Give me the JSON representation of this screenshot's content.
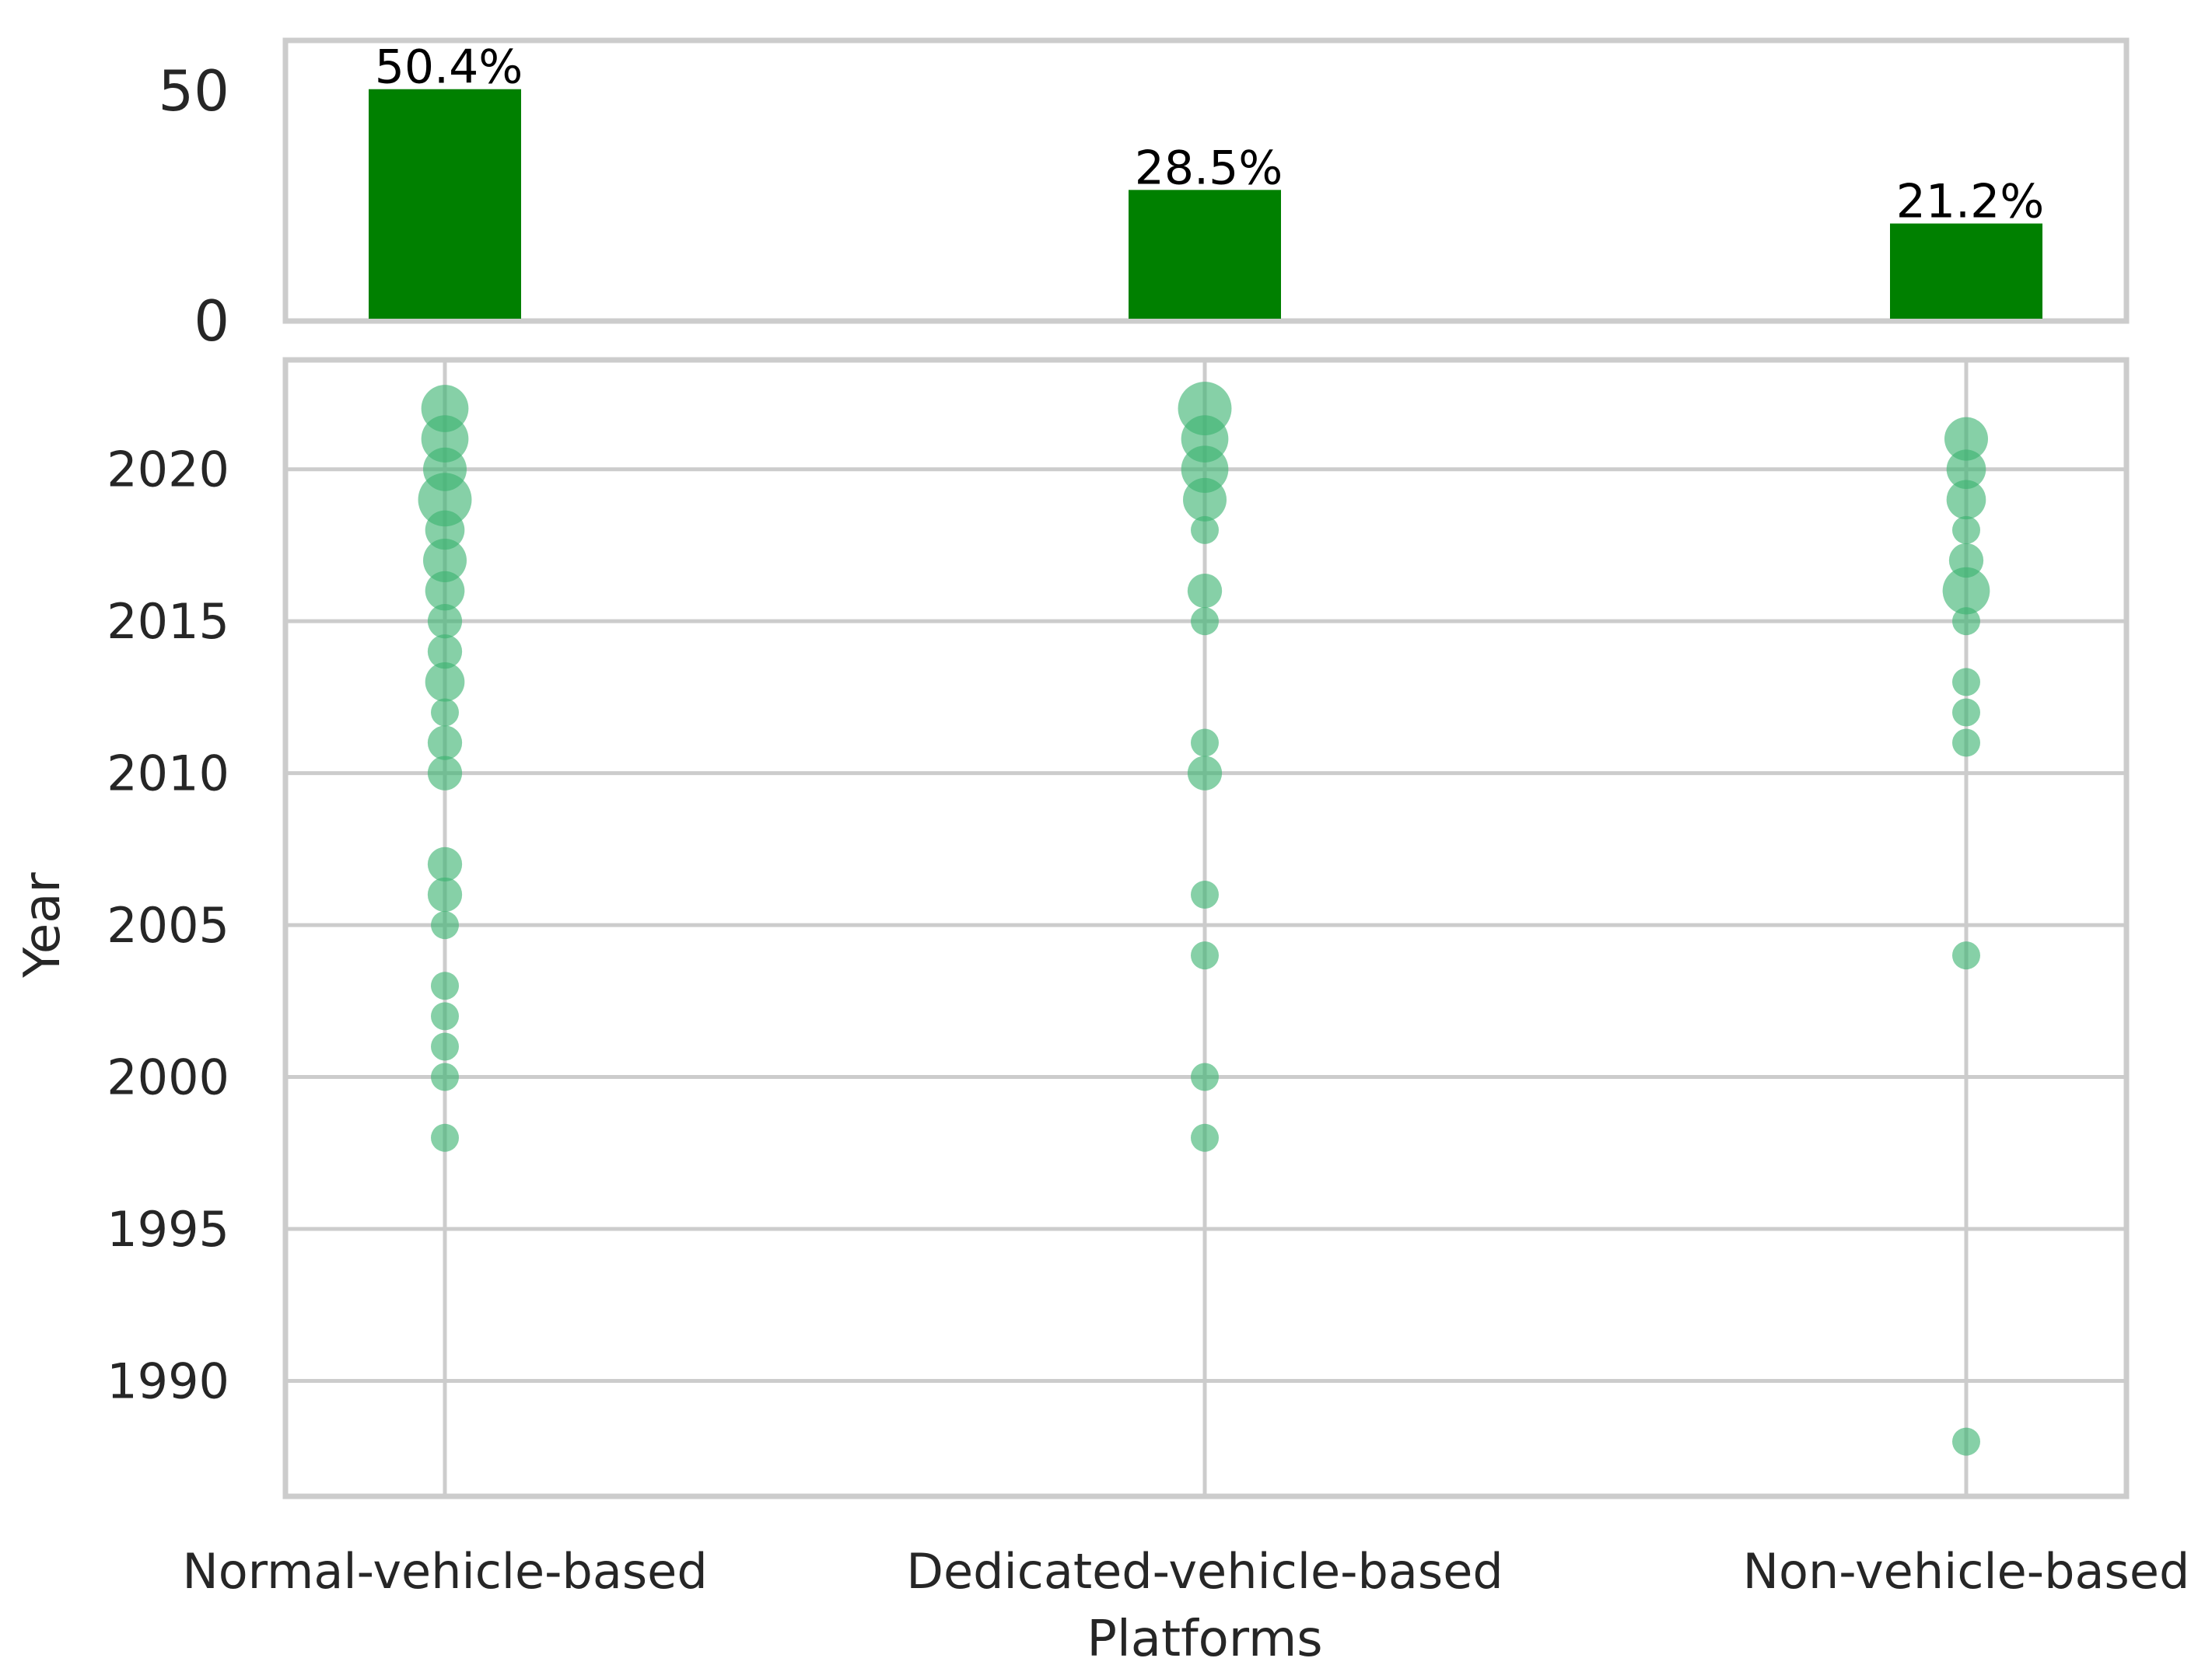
{
  "colors": {
    "bar": "#008000",
    "bubble": "#3cb371",
    "frame": "#cccccc",
    "grid": "#cccccc",
    "text": "#262626"
  },
  "chart_data": [
    {
      "type": "bar",
      "title": "",
      "categories": [
        "Normal-vehicle-based",
        "Dedicated-vehicle-based",
        "Non-vehicle-based"
      ],
      "values": [
        50.4,
        28.5,
        21.2
      ],
      "data_labels": [
        "50.4%",
        "28.5%",
        "21.2%"
      ],
      "ylim": [
        0,
        61
      ],
      "yticks": [
        0,
        50
      ],
      "ytick_labels": [
        "0",
        "50"
      ],
      "grid": false
    },
    {
      "type": "scatter",
      "title": "",
      "xlabel": "Platforms",
      "ylabel": "Year",
      "categories": [
        "Normal-vehicle-based",
        "Dedicated-vehicle-based",
        "Non-vehicle-based"
      ],
      "ylim": [
        1986.2,
        2023.6
      ],
      "yticks": [
        1990,
        1995,
        2000,
        2005,
        2010,
        2015,
        2020
      ],
      "ytick_labels": [
        "1990",
        "1995",
        "2000",
        "2005",
        "2010",
        "2015",
        "2020"
      ],
      "grid": true,
      "size_encoding": "number of studies per year (relative)",
      "series": [
        {
          "name": "Normal-vehicle-based",
          "points": [
            {
              "year": 2022,
              "size": 5
            },
            {
              "year": 2021,
              "size": 5
            },
            {
              "year": 2020,
              "size": 4
            },
            {
              "year": 2019,
              "size": 7
            },
            {
              "year": 2018,
              "size": 3
            },
            {
              "year": 2017,
              "size": 4
            },
            {
              "year": 2016,
              "size": 3
            },
            {
              "year": 2015,
              "size": 2
            },
            {
              "year": 2014,
              "size": 2
            },
            {
              "year": 2013,
              "size": 3
            },
            {
              "year": 2012,
              "size": 1
            },
            {
              "year": 2011,
              "size": 2
            },
            {
              "year": 2010,
              "size": 2
            },
            {
              "year": 2007,
              "size": 2
            },
            {
              "year": 2006,
              "size": 2
            },
            {
              "year": 2005,
              "size": 1
            },
            {
              "year": 2003,
              "size": 1
            },
            {
              "year": 2002,
              "size": 1
            },
            {
              "year": 2001,
              "size": 1
            },
            {
              "year": 2000,
              "size": 1
            },
            {
              "year": 1998,
              "size": 1
            }
          ]
        },
        {
          "name": "Dedicated-vehicle-based",
          "points": [
            {
              "year": 2022,
              "size": 7
            },
            {
              "year": 2021,
              "size": 5
            },
            {
              "year": 2020,
              "size": 5
            },
            {
              "year": 2019,
              "size": 4
            },
            {
              "year": 2018,
              "size": 1
            },
            {
              "year": 2016,
              "size": 2
            },
            {
              "year": 2015,
              "size": 1
            },
            {
              "year": 2011,
              "size": 1
            },
            {
              "year": 2010,
              "size": 2
            },
            {
              "year": 2006,
              "size": 1
            },
            {
              "year": 2004,
              "size": 1
            },
            {
              "year": 2000,
              "size": 1
            },
            {
              "year": 1998,
              "size": 1
            }
          ]
        },
        {
          "name": "Non-vehicle-based",
          "points": [
            {
              "year": 2021,
              "size": 4
            },
            {
              "year": 2020,
              "size": 3
            },
            {
              "year": 2019,
              "size": 3
            },
            {
              "year": 2018,
              "size": 1
            },
            {
              "year": 2017,
              "size": 2
            },
            {
              "year": 2016,
              "size": 5
            },
            {
              "year": 2015,
              "size": 1
            },
            {
              "year": 2013,
              "size": 1
            },
            {
              "year": 2012,
              "size": 1
            },
            {
              "year": 2011,
              "size": 1
            },
            {
              "year": 2004,
              "size": 1
            },
            {
              "year": 1988,
              "size": 1
            }
          ]
        }
      ]
    }
  ]
}
